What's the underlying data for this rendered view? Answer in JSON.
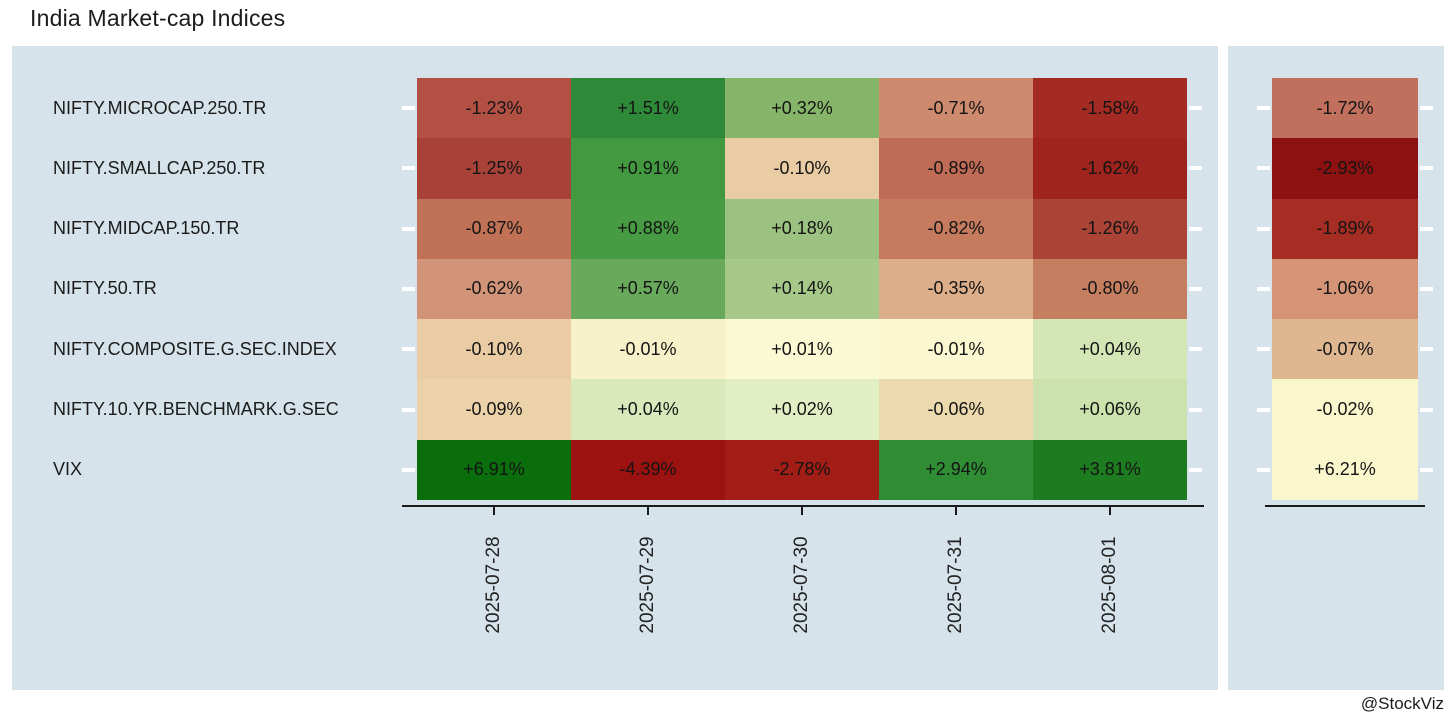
{
  "title": "India Market-cap Indices",
  "credit": "@StockViz",
  "colors": {
    "panel_bg": "#d6e3ea",
    "axis": "#1a1a1a",
    "tick": "#ffffff",
    "cell_text": "#141414"
  },
  "chart_data": {
    "type": "heatmap",
    "title": "India Market-cap Indices",
    "x_labels": [
      "2025-07-28",
      "2025-07-29",
      "2025-07-30",
      "2025-07-31",
      "2025-08-01"
    ],
    "rows": [
      {
        "label": "NIFTY.MICROCAP.250.TR",
        "values": [
          "-1.23%",
          "+1.51%",
          "+0.32%",
          "-0.71%",
          "-1.58%"
        ],
        "colors": [
          "#b35044",
          "#2e8a38",
          "#86b569",
          "#cd8a6e",
          "#a32b24"
        ],
        "summary_value": "-1.72%",
        "summary_color": "#c0705c"
      },
      {
        "label": "NIFTY.SMALLCAP.250.TR",
        "values": [
          "-1.25%",
          "+0.91%",
          "-0.10%",
          "-0.89%",
          "-1.62%"
        ],
        "colors": [
          "#a84238",
          "#43993f",
          "#e9cba4",
          "#bf6b55",
          "#9f241e"
        ],
        "summary_value": "-2.93%",
        "summary_color": "#8e1111"
      },
      {
        "label": "NIFTY.MIDCAP.150.TR",
        "values": [
          "-0.87%",
          "+0.88%",
          "+0.18%",
          "-0.82%",
          "-1.26%"
        ],
        "colors": [
          "#c17156",
          "#479b42",
          "#9cc281",
          "#c67a5e",
          "#ab4337"
        ],
        "summary_value": "-1.89%",
        "summary_color": "#a52d23"
      },
      {
        "label": "NIFTY.50.TR",
        "values": [
          "-0.62%",
          "+0.57%",
          "+0.14%",
          "-0.35%",
          "-0.80%"
        ],
        "colors": [
          "#d29478",
          "#68a95c",
          "#a6c98a",
          "#dcae89",
          "#c57e60"
        ],
        "summary_value": "-1.06%",
        "summary_color": "#d69477"
      },
      {
        "label": "NIFTY.COMPOSITE.G.SEC.INDEX",
        "values": [
          "-0.10%",
          "-0.01%",
          "+0.01%",
          "-0.01%",
          "+0.04%"
        ],
        "colors": [
          "#e9cba4",
          "#f7f1c9",
          "#fbf9d3",
          "#fbf8d1",
          "#d4e5b6"
        ],
        "summary_value": "-0.07%",
        "summary_color": "#deb690"
      },
      {
        "label": "NIFTY.10.YR.BENCHMARK.G.SEC",
        "values": [
          "-0.09%",
          "+0.04%",
          "+0.02%",
          "-0.06%",
          "+0.06%"
        ],
        "colors": [
          "#ebd2a9",
          "#d9e9bb",
          "#e2eec4",
          "#ecd9ae",
          "#cbe2ad"
        ],
        "summary_value": "-0.02%",
        "summary_color": "#fbf7cc"
      },
      {
        "label": "VIX",
        "values": [
          "+6.91%",
          "-4.39%",
          "-2.78%",
          "+2.94%",
          "+3.81%"
        ],
        "colors": [
          "#0b6e0d",
          "#9b1210",
          "#a21d15",
          "#2f8e33",
          "#1e7c20"
        ],
        "summary_value": "+6.21%",
        "summary_color": "#fbf7cc"
      }
    ]
  }
}
